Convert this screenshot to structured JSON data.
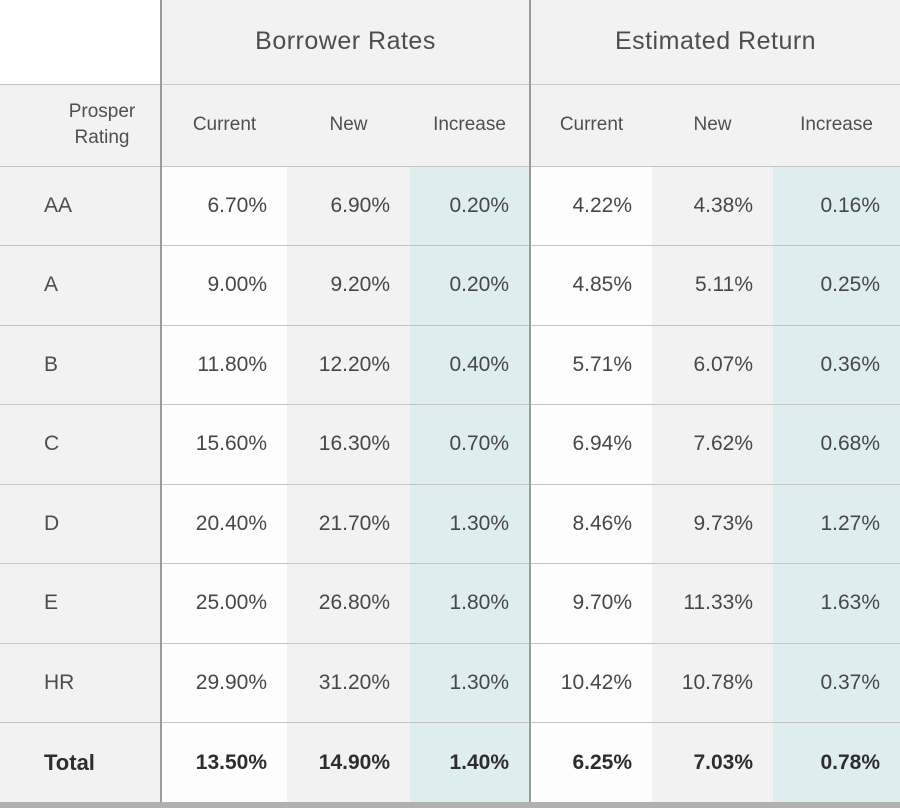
{
  "chart_data": {
    "type": "table",
    "row_header": "Prosper Rating",
    "column_groups": [
      {
        "label": "Borrower Rates",
        "columns": [
          "Current",
          "New",
          "Increase"
        ]
      },
      {
        "label": "Estimated Return",
        "columns": [
          "Current",
          "New",
          "Increase"
        ]
      }
    ],
    "rows": [
      {
        "rating": "AA",
        "values": [
          "6.70%",
          "6.90%",
          "0.20%",
          "4.22%",
          "4.38%",
          "0.16%"
        ]
      },
      {
        "rating": "A",
        "values": [
          "9.00%",
          "9.20%",
          "0.20%",
          "4.85%",
          "5.11%",
          "0.25%"
        ]
      },
      {
        "rating": "B",
        "values": [
          "11.80%",
          "12.20%",
          "0.40%",
          "5.71%",
          "6.07%",
          "0.36%"
        ]
      },
      {
        "rating": "C",
        "values": [
          "15.60%",
          "16.30%",
          "0.70%",
          "6.94%",
          "7.62%",
          "0.68%"
        ]
      },
      {
        "rating": "D",
        "values": [
          "20.40%",
          "21.70%",
          "1.30%",
          "8.46%",
          "9.73%",
          "1.27%"
        ]
      },
      {
        "rating": "E",
        "values": [
          "25.00%",
          "26.80%",
          "1.80%",
          "9.70%",
          "11.33%",
          "1.63%"
        ]
      },
      {
        "rating": "HR",
        "values": [
          "29.90%",
          "31.20%",
          "1.30%",
          "10.42%",
          "10.78%",
          "0.37%"
        ]
      },
      {
        "rating": "Total",
        "values": [
          "13.50%",
          "14.90%",
          "1.40%",
          "6.25%",
          "7.03%",
          "0.78%"
        ]
      }
    ]
  },
  "colors": {
    "increase_bg": "#deeef0",
    "band_gray": "#f2f2f2",
    "current_bg": "#fdfdfd",
    "separator_dark": "#9b9b9b",
    "separator_light": "#c4c4c4",
    "bottom_bar": "#b1b1b1",
    "text": "#4a4a4a"
  }
}
